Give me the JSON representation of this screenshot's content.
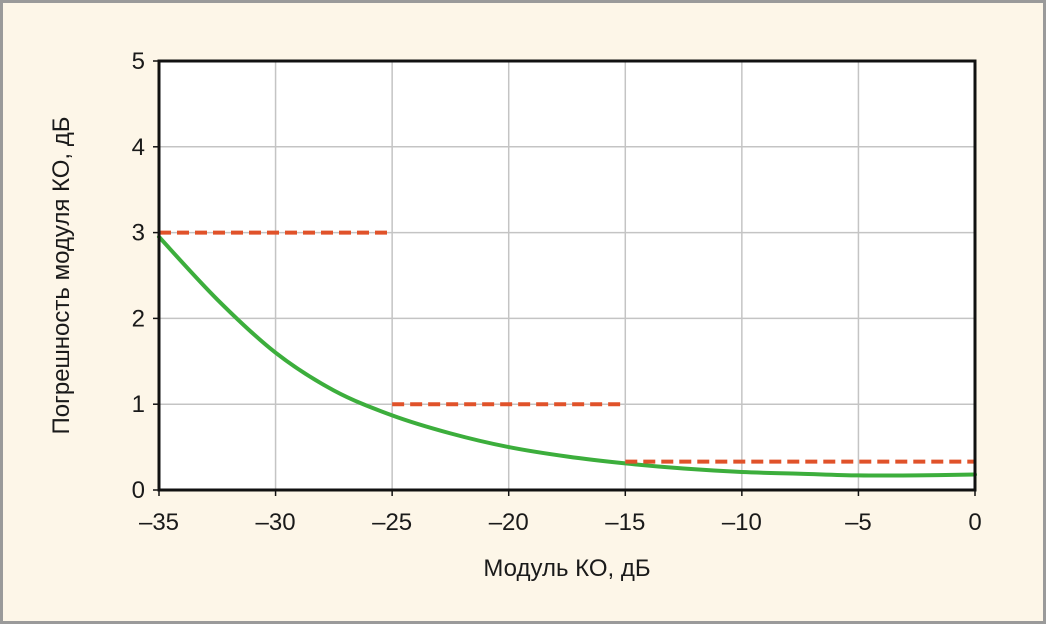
{
  "colors": {
    "background": "#fdf6e8",
    "plot_background": "#ffffff",
    "frame": "#111111",
    "grid": "#c4c4c4",
    "curve": "#3cae3c",
    "limit": "#e0522a"
  },
  "chart_data": {
    "type": "line",
    "title": "",
    "xlabel": "Модуль КО, дБ",
    "ylabel": "Погрешность модуля КО, дБ",
    "xlim": [
      -35,
      0
    ],
    "ylim": [
      0,
      5
    ],
    "xticks": [
      -35,
      -30,
      -25,
      -20,
      -15,
      -10,
      -5,
      0
    ],
    "xtick_labels": [
      "–35",
      "–30",
      "–25",
      "–20",
      "–15",
      "–10",
      "–5",
      "0"
    ],
    "yticks": [
      0,
      1,
      2,
      3,
      4,
      5
    ],
    "ytick_labels": [
      "0",
      "1",
      "2",
      "3",
      "4",
      "5"
    ],
    "grid": true,
    "legend": "none",
    "series": [
      {
        "style": "solid",
        "color": "#3cae3c",
        "x": [
          -35,
          -32.5,
          -30,
          -27.5,
          -25,
          -22.5,
          -20,
          -17.5,
          -15,
          -12.5,
          -10,
          -7.5,
          -5,
          -2.5,
          0
        ],
        "y": [
          2.95,
          2.22,
          1.6,
          1.16,
          0.87,
          0.66,
          0.5,
          0.39,
          0.31,
          0.25,
          0.21,
          0.19,
          0.17,
          0.17,
          0.18
        ]
      },
      {
        "style": "dashed",
        "color": "#e0522a",
        "x": [
          -35,
          -25
        ],
        "y": [
          3.0,
          3.0
        ]
      },
      {
        "style": "dashed",
        "color": "#e0522a",
        "x": [
          -25,
          -15
        ],
        "y": [
          1.0,
          1.0
        ]
      },
      {
        "style": "dashed",
        "color": "#e0522a",
        "x": [
          -15,
          0
        ],
        "y": [
          0.33,
          0.33
        ]
      }
    ]
  }
}
